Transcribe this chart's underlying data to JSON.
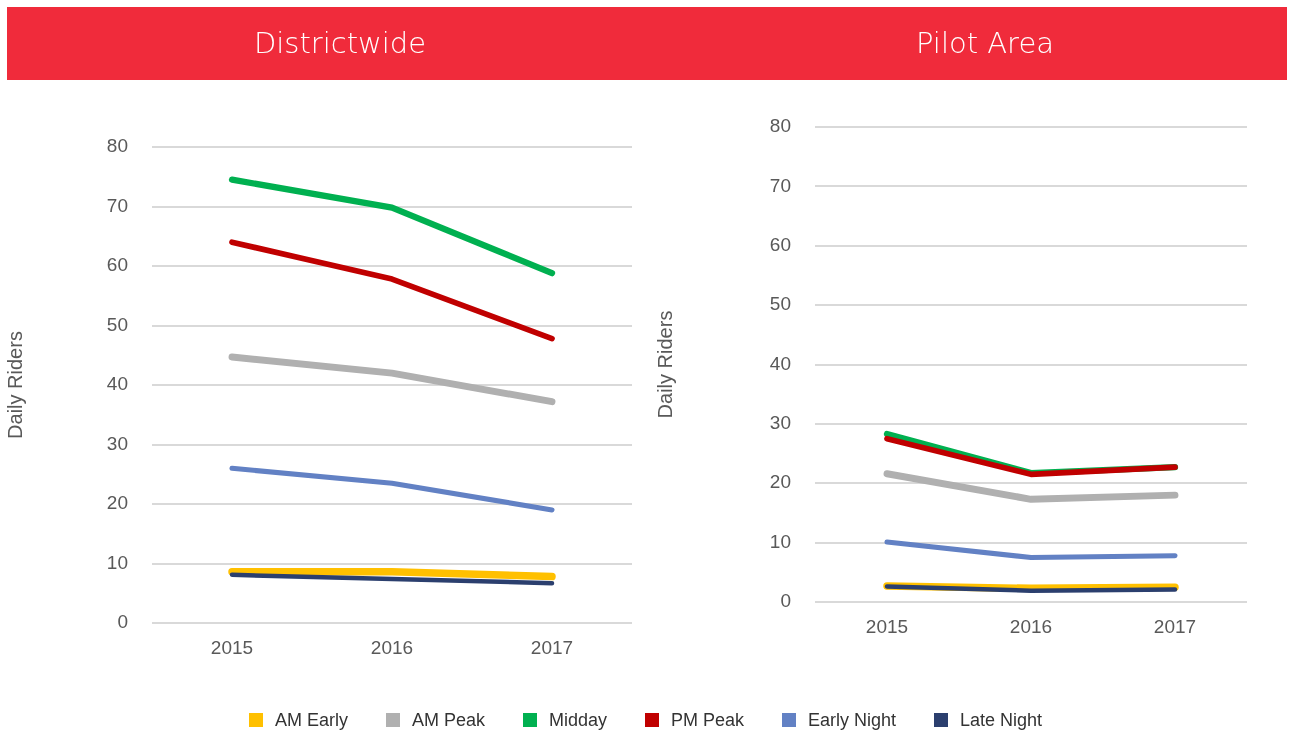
{
  "chart_data": [
    {
      "type": "line",
      "title": "Districtwide",
      "ylabel": "Daily Riders",
      "categories": [
        "2015",
        "2016",
        "2017"
      ],
      "ylim": [
        0,
        80
      ],
      "yticks": [
        0,
        10,
        20,
        30,
        40,
        50,
        60,
        70,
        80
      ],
      "grid": "y",
      "legend": "bottom",
      "marker": "none",
      "line_style": "solid",
      "series": [
        {
          "name": "AM Early",
          "color": "#ffc000",
          "values": [
            8.6,
            8.6,
            7.8
          ]
        },
        {
          "name": "AM Peak",
          "color": "#b0b0b0",
          "values": [
            44.7,
            42,
            37.2
          ]
        },
        {
          "name": "Midday",
          "color": "#00b050",
          "values": [
            74.5,
            69.8,
            58.8
          ]
        },
        {
          "name": "PM Peak",
          "color": "#c00000",
          "values": [
            64,
            57.8,
            47.8
          ]
        },
        {
          "name": "Early Night",
          "color": "#6281c4",
          "values": [
            26,
            23.5,
            19
          ]
        },
        {
          "name": "Late Night",
          "color": "#2b3f6e",
          "values": [
            8.1,
            7.4,
            6.7
          ]
        }
      ]
    },
    {
      "type": "line",
      "title": "Pilot Area",
      "ylabel": "Daily Riders",
      "categories": [
        "2015",
        "2016",
        "2017"
      ],
      "ylim": [
        0,
        80
      ],
      "yticks": [
        0,
        10,
        20,
        30,
        40,
        50,
        60,
        70,
        80
      ],
      "grid": "y",
      "legend": "bottom",
      "marker": "none",
      "line_style": "solid",
      "series": [
        {
          "name": "AM Early",
          "color": "#ffc000",
          "values": [
            2.7,
            2.3,
            2.5
          ]
        },
        {
          "name": "AM Peak",
          "color": "#b0b0b0",
          "values": [
            21.6,
            17.3,
            18
          ]
        },
        {
          "name": "Midday",
          "color": "#00b050",
          "values": [
            28.3,
            21.7,
            22.7
          ]
        },
        {
          "name": "PM Peak",
          "color": "#c00000",
          "values": [
            27.5,
            21.5,
            22.7
          ]
        },
        {
          "name": "Early Night",
          "color": "#6281c4",
          "values": [
            10.1,
            7.5,
            7.8
          ]
        },
        {
          "name": "Late Night",
          "color": "#2b3f6e",
          "values": [
            2.6,
            1.9,
            2.1
          ]
        }
      ]
    }
  ]
}
